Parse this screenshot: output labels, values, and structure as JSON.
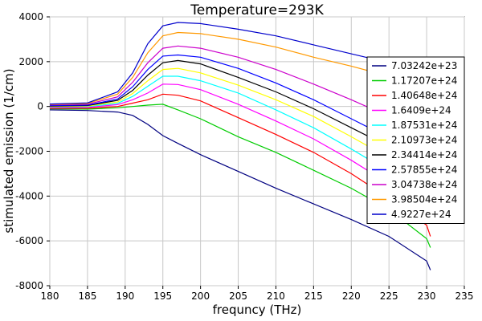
{
  "chart_data": {
    "type": "line",
    "title": "Temperature=293K",
    "xlabel": "frequncy (THz)",
    "ylabel": "stimulated emission (1/cm)",
    "xlim": [
      180,
      235
    ],
    "ylim": [
      -8000,
      4000
    ],
    "xticks": [
      180,
      185,
      190,
      195,
      200,
      205,
      210,
      215,
      220,
      225,
      230,
      235
    ],
    "yticks": [
      -8000,
      -6000,
      -4000,
      -2000,
      0,
      2000,
      4000
    ],
    "grid": true,
    "legend_position": "right",
    "x": [
      180,
      185,
      189,
      191,
      193,
      195,
      197,
      200,
      205,
      210,
      215,
      220,
      225,
      230,
      230.5
    ],
    "series": [
      {
        "name": "7.03242e+23",
        "color": "#000080",
        "values": [
          -150,
          -180,
          -250,
          -400,
          -800,
          -1300,
          -1650,
          -2150,
          -2900,
          -3650,
          -4350,
          -5050,
          -5800,
          -6900,
          -7300
        ]
      },
      {
        "name": "1.17207e+24",
        "color": "#00cc00",
        "values": [
          -100,
          -120,
          -60,
          0,
          60,
          100,
          -150,
          -550,
          -1350,
          -2050,
          -2850,
          -3650,
          -4600,
          -5900,
          -6300
        ]
      },
      {
        "name": "1.40648e+24",
        "color": "#ff0000",
        "values": [
          -80,
          -80,
          0,
          150,
          300,
          550,
          500,
          250,
          -500,
          -1250,
          -2050,
          -3000,
          -4100,
          -5300,
          -5800
        ]
      },
      {
        "name": "1.6409e+24",
        "color": "#ff00ff",
        "values": [
          -50,
          -40,
          80,
          300,
          600,
          1000,
          980,
          750,
          100,
          -650,
          -1450,
          -2400,
          -3450,
          -4550,
          -5000
        ]
      },
      {
        "name": "1.87531e+24",
        "color": "#00ffff",
        "values": [
          -20,
          -5,
          140,
          450,
          900,
          1350,
          1350,
          1150,
          600,
          -150,
          -950,
          -1900,
          -2900,
          -4000,
          -4400
        ]
      },
      {
        "name": "2.10973e+24",
        "color": "#ffff00",
        "values": [
          0,
          20,
          200,
          580,
          1150,
          1650,
          1700,
          1500,
          950,
          300,
          -450,
          -1350,
          -2300,
          -3450,
          -3900
        ]
      },
      {
        "name": "2.34414e+24",
        "color": "#000000",
        "values": [
          20,
          40,
          270,
          720,
          1400,
          1950,
          2050,
          1900,
          1300,
          650,
          -100,
          -950,
          -1800,
          -2900,
          -3400
        ]
      },
      {
        "name": "2.57855e+24",
        "color": "#0000ff",
        "values": [
          40,
          60,
          330,
          880,
          1650,
          2250,
          2300,
          2200,
          1700,
          1050,
          300,
          -550,
          -1400,
          -2500,
          -2900
        ]
      },
      {
        "name": "3.04738e+24",
        "color": "#cc00cc",
        "values": [
          70,
          100,
          430,
          1080,
          1950,
          2600,
          2700,
          2600,
          2200,
          1650,
          1000,
          300,
          -450,
          -1350,
          -1650
        ]
      },
      {
        "name": "3.98504e+24",
        "color": "#ff9900",
        "values": [
          90,
          130,
          550,
          1300,
          2400,
          3150,
          3300,
          3250,
          3000,
          2650,
          2200,
          1800,
          1350,
          800,
          700
        ]
      },
      {
        "name": "4.9227e+24",
        "color": "#0000cc",
        "values": [
          110,
          160,
          650,
          1500,
          2800,
          3600,
          3750,
          3700,
          3450,
          3150,
          2750,
          2350,
          1950,
          1500,
          1400
        ]
      }
    ]
  }
}
